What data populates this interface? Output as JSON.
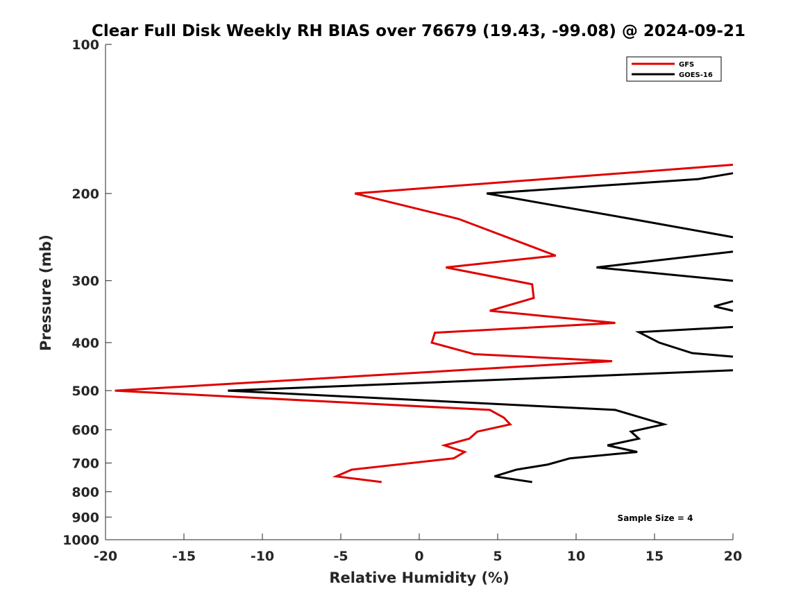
{
  "chart_data": {
    "type": "line",
    "title": "Clear Full Disk Weekly RH BIAS over 76679 (19.43, -99.08) @ 2024-09-21",
    "xlabel": "Relative Humidity (%)",
    "ylabel": "Pressure (mb)",
    "xlim": [
      -20,
      20
    ],
    "ylim": [
      1000,
      100
    ],
    "yscale": "log",
    "xticks": [
      "-20",
      "-15",
      "-10",
      "-5",
      "0",
      "5",
      "10",
      "15",
      "20"
    ],
    "yticks": [
      "100",
      "200",
      "300",
      "400",
      "500",
      "600",
      "700",
      "800",
      "900",
      "1000"
    ],
    "grid": false,
    "legend_position": "top-right",
    "annotation": "Sample Size = 4",
    "series": [
      {
        "name": "GFS",
        "color": "#e00000",
        "points": [
          [
            20,
            175
          ],
          [
            -4.1,
            200
          ],
          [
            2.5,
            225
          ],
          [
            8.7,
            267
          ],
          [
            1.7,
            282
          ],
          [
            7.2,
            305
          ],
          [
            7.3,
            325
          ],
          [
            4.5,
            345
          ],
          [
            12.5,
            365
          ],
          [
            1.0,
            382
          ],
          [
            0.8,
            400
          ],
          [
            3.5,
            422
          ],
          [
            12.3,
            436
          ],
          [
            -19.4,
            500
          ],
          [
            4.5,
            547
          ],
          [
            5.4,
            567
          ],
          [
            5.8,
            585
          ],
          [
            3.7,
            605
          ],
          [
            3.2,
            625
          ],
          [
            1.6,
            645
          ],
          [
            2.9,
            665
          ],
          [
            2.2,
            685
          ],
          [
            -4.3,
            722
          ],
          [
            -5.3,
            745
          ],
          [
            -2.4,
            765
          ]
        ]
      },
      {
        "name": "GOES-16",
        "color": "#000000",
        "points": [
          [
            20,
            182
          ],
          [
            17.8,
            187
          ],
          [
            4.3,
            200
          ],
          [
            13.5,
            225
          ],
          [
            20,
            245
          ],
          [
            null,
            null
          ],
          [
            20,
            262
          ],
          [
            11.3,
            282
          ],
          [
            20,
            300
          ],
          [
            null,
            null
          ],
          [
            20,
            330
          ],
          [
            18.8,
            338
          ],
          [
            20,
            345
          ],
          [
            null,
            null
          ],
          [
            20,
            372
          ],
          [
            14.0,
            381
          ],
          [
            15.3,
            400
          ],
          [
            17.4,
            420
          ],
          [
            20,
            427
          ],
          [
            null,
            null
          ],
          [
            20,
            455
          ],
          [
            -12.2,
            500
          ],
          [
            12.5,
            547
          ],
          [
            15.6,
            585
          ],
          [
            13.5,
            605
          ],
          [
            14.0,
            625
          ],
          [
            12.0,
            645
          ],
          [
            13.9,
            665
          ],
          [
            9.6,
            685
          ],
          [
            8.2,
            705
          ],
          [
            6.2,
            722
          ],
          [
            4.8,
            745
          ],
          [
            7.2,
            765
          ]
        ]
      }
    ]
  }
}
